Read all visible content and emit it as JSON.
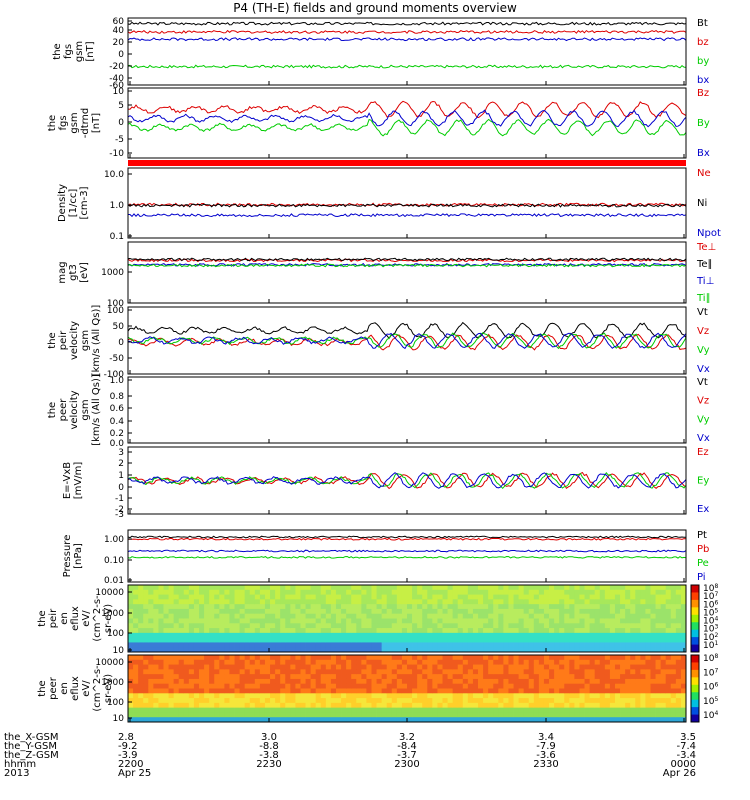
{
  "title": "P4 (TH-E) fields and ground moments overview",
  "chart_data": [
    {
      "type": "line",
      "name": "fgs_gsm_absolute",
      "ylabel": [
        "the",
        "fgs",
        "gsm",
        "[nT]"
      ],
      "yticks": [
        "60",
        "40",
        "20",
        "0",
        "-20",
        "-40",
        "-60"
      ],
      "ylim": [
        -60,
        60
      ],
      "series": [
        {
          "name": "Bt",
          "color": "#000000",
          "level": 50
        },
        {
          "name": "bz",
          "color": "#dd0000",
          "level": 35
        },
        {
          "name": "by",
          "color": "#00cc00",
          "level": -27
        },
        {
          "name": "bx",
          "color": "#0000cc",
          "level": 22
        }
      ]
    },
    {
      "type": "line",
      "name": "fgs_gsm_detrended",
      "ylabel": [
        "the",
        "fgs",
        "gsm",
        "-dtrnd",
        "[nT]"
      ],
      "yticks": [
        "10",
        "5",
        "0",
        "-5",
        "-10"
      ],
      "ylim": [
        -13,
        10
      ],
      "series": [
        {
          "name": "Bz",
          "color": "#dd0000",
          "level": 3
        },
        {
          "name": "By",
          "color": "#00cc00",
          "level": -3
        },
        {
          "name": "Bx",
          "color": "#0000cc",
          "level": 0
        }
      ]
    },
    {
      "type": "line",
      "name": "density",
      "ylabel": [
        "Density",
        "[1/cc]",
        "[cm-3]"
      ],
      "scale": "log",
      "yticks": [
        "10.0",
        "1.0",
        "0.1"
      ],
      "ylim": [
        0.1,
        10
      ],
      "series": [
        {
          "name": "Ne",
          "color": "#dd0000",
          "level": 0.9
        },
        {
          "name": "Ni",
          "color": "#000000",
          "level": 0.85
        },
        {
          "name": "Npot",
          "color": "#0000cc",
          "level": 0.45
        }
      ]
    },
    {
      "type": "line",
      "name": "temperature",
      "ylabel": [
        "mag",
        "gt3",
        "[eV]"
      ],
      "scale": "log",
      "yticks": [
        "1000",
        "100"
      ],
      "ylim": [
        100,
        10000
      ],
      "series": [
        {
          "name": "Te⊥",
          "color": "#dd0000",
          "level": 2500
        },
        {
          "name": "Te∥",
          "color": "#000000",
          "level": 2700
        },
        {
          "name": "Ti⊥",
          "color": "#0000cc",
          "level": 1800
        },
        {
          "name": "Ti∥",
          "color": "#00cc00",
          "level": 1700
        }
      ]
    },
    {
      "type": "line",
      "name": "peir_velocity",
      "ylabel": [
        "the",
        "peir",
        "velocity",
        "gsm",
        "[km/s (All Qs)]"
      ],
      "yticks": [
        "100",
        "50",
        "0",
        "-50",
        "-100"
      ],
      "ylim": [
        -100,
        100
      ],
      "series": [
        {
          "name": "Vt",
          "color": "#000000",
          "level": 30
        },
        {
          "name": "Vz",
          "color": "#dd0000",
          "level": -5
        },
        {
          "name": "Vy",
          "color": "#00cc00",
          "level": 0
        },
        {
          "name": "Vx",
          "color": "#0000cc",
          "level": 0
        }
      ]
    },
    {
      "type": "line",
      "name": "peer_velocity",
      "ylabel": [
        "the",
        "peer",
        "velocity",
        "gsm",
        "[km/s (All Qs)]"
      ],
      "yticks": [
        "1.0",
        "0.8",
        "0.6",
        "0.4",
        "0.2",
        "0.0"
      ],
      "ylim": [
        0,
        1
      ],
      "series": [
        {
          "name": "Vt",
          "color": "#000000"
        },
        {
          "name": "Vz",
          "color": "#dd0000"
        },
        {
          "name": "Vy",
          "color": "#00cc00"
        },
        {
          "name": "Vx",
          "color": "#0000cc"
        }
      ]
    },
    {
      "type": "line",
      "name": "efield",
      "ylabel": [
        "E=-VxB",
        "[mV/m]"
      ],
      "yticks": [
        "3",
        "2",
        "1",
        "0",
        "-1",
        "-2",
        "-3"
      ],
      "ylim": [
        -3,
        3
      ],
      "series": [
        {
          "name": "Ez",
          "color": "#dd0000",
          "level": 0
        },
        {
          "name": "Ey",
          "color": "#00cc00",
          "level": 0
        },
        {
          "name": "Ex",
          "color": "#0000cc",
          "level": 0
        }
      ]
    },
    {
      "type": "line",
      "name": "pressure",
      "ylabel": [
        "Pressure",
        "[nPa]"
      ],
      "scale": "log",
      "yticks": [
        "1.00",
        "0.10",
        "0.01"
      ],
      "ylim": [
        0.01,
        3
      ],
      "series": [
        {
          "name": "Pt",
          "color": "#000000",
          "level": 1.4
        },
        {
          "name": "Pb",
          "color": "#dd0000",
          "level": 1.1
        },
        {
          "name": "Pe",
          "color": "#00cc00",
          "level": 0.15
        },
        {
          "name": "Pi",
          "color": "#0000cc",
          "level": 0.3
        }
      ]
    },
    {
      "type": "heatmap",
      "name": "peir_en_eflux",
      "ylabel": [
        "the",
        "peir",
        "en",
        "eflux",
        "eV/",
        "(cm^2-s-",
        "sr-eV)"
      ],
      "scale": "log",
      "yticks": [
        "10000",
        "1000",
        "100",
        "10"
      ],
      "ylim": [
        7,
        20000
      ],
      "colorbar_ticks": [
        "10^8",
        "10^7",
        "10^6",
        "10^5",
        "10^4",
        "10^3",
        "10^2",
        "10^1"
      ]
    },
    {
      "type": "heatmap",
      "name": "peer_en_eflux",
      "ylabel": [
        "the",
        "peer",
        "en",
        "eflux",
        "eV/",
        "(cm^2-s-",
        "sr-eV)"
      ],
      "scale": "log",
      "yticks": [
        "10000",
        "1000",
        "100",
        "10"
      ],
      "ylim": [
        7,
        20000
      ],
      "colorbar_ticks": [
        "10^8",
        "10^7",
        "10^6",
        "10^5",
        "10^4"
      ]
    }
  ],
  "x_axis": {
    "labels": [
      "the_X-GSM",
      "the_Y-GSM",
      "the_Z-GSM",
      "hhmm",
      "2013"
    ],
    "columns": [
      {
        "values": [
          "2.8",
          "-9.2",
          "-3.9",
          "2200",
          "Apr 25"
        ]
      },
      {
        "values": [
          "3.0",
          "-8.8",
          "-3.8",
          "2230",
          ""
        ]
      },
      {
        "values": [
          "3.2",
          "-8.4",
          "-3.7",
          "2300",
          ""
        ]
      },
      {
        "values": [
          "3.4",
          "-7.9",
          "-3.6",
          "2330",
          ""
        ]
      },
      {
        "values": [
          "3.5",
          "-7.4",
          "-3.4",
          "0000",
          "Apr 26"
        ]
      }
    ]
  }
}
